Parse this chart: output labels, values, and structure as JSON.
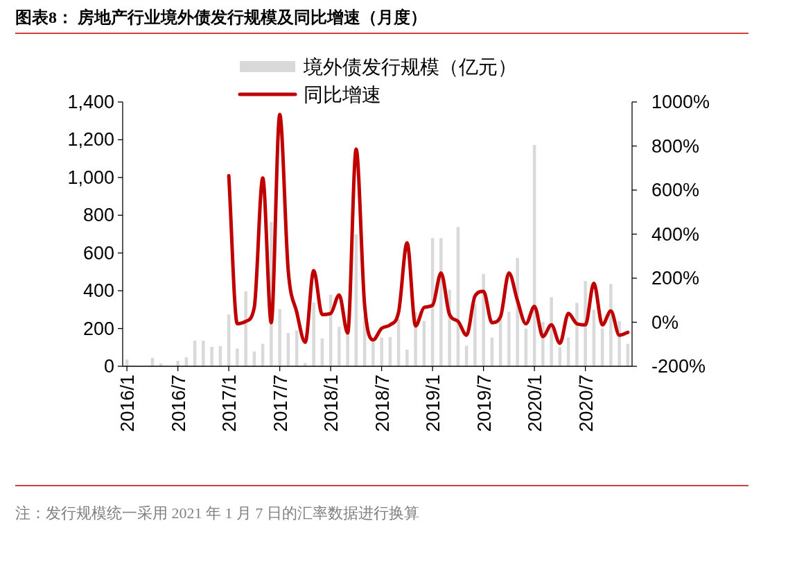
{
  "chart_data": {
    "type": "bar",
    "title": "图表8：  房地产行业境外债发行规模及同比增速（月度）",
    "categories": [
      "2016/1",
      null,
      null,
      null,
      null,
      null,
      "2016/7",
      null,
      null,
      null,
      null,
      null,
      "2017/1",
      null,
      null,
      null,
      null,
      null,
      "2017/7",
      null,
      null,
      null,
      null,
      null,
      "2018/1",
      null,
      null,
      null,
      null,
      null,
      "2018/7",
      null,
      null,
      null,
      null,
      null,
      "2019/1",
      null,
      null,
      null,
      null,
      null,
      "2019/7",
      null,
      null,
      null,
      null,
      null,
      "2020/1",
      null,
      null,
      null,
      null,
      null,
      "2020/7",
      null,
      null,
      null,
      null,
      null
    ],
    "series": [
      {
        "name": "境外债发行规模（亿元）",
        "color": "#d9d9d9",
        "values": [
          36,
          0,
          0,
          45,
          15,
          0,
          29,
          48,
          136,
          136,
          103,
          107,
          274,
          94,
          397,
          78,
          119,
          764,
          303,
          176,
          189,
          17,
          338,
          148,
          379,
          209,
          176,
          699,
          268,
          130,
          152,
          155,
          250,
          88,
          287,
          240,
          679,
          679,
          405,
          738,
          109,
          330,
          489,
          152,
          250,
          289,
          574,
          200,
          1172,
          235,
          366,
          100,
          152,
          336,
          452,
          300,
          200,
          436,
          240,
          119
        ]
      },
      {
        "name": "同比增速",
        "type": "line",
        "axis": "y2",
        "color": "#c00000",
        "values": [
          null,
          null,
          null,
          null,
          null,
          null,
          null,
          null,
          null,
          null,
          null,
          null,
          665,
          -7,
          4,
          67,
          655,
          -2,
          943,
          235,
          46,
          -91,
          235,
          35,
          40,
          124,
          -49,
          786,
          77,
          -80,
          -28,
          -12,
          46,
          361,
          -17,
          67,
          77,
          224,
          35,
          4,
          -59,
          119,
          140,
          -2,
          25,
          224,
          98,
          -7,
          72,
          -65,
          -12,
          -96,
          40,
          -7,
          -12,
          177,
          -12,
          51,
          -59,
          -46
        ]
      }
    ],
    "ylim": [
      0,
      1400
    ],
    "yticks": [
      0,
      200,
      400,
      600,
      800,
      {
        "value": 1000,
        "label": "1,000"
      },
      {
        "value": 1200,
        "label": "1,200"
      },
      {
        "value": 1400,
        "label": "1,400"
      }
    ],
    "y2lim": [
      -200,
      1000
    ],
    "y2ticks": [
      {
        "value": -200,
        "label": "-200%"
      },
      {
        "value": 0,
        "label": "0%"
      },
      {
        "value": 200,
        "label": "200%"
      },
      {
        "value": 400,
        "label": "400%"
      },
      {
        "value": 600,
        "label": "600%"
      },
      {
        "value": 800,
        "label": "800%"
      },
      {
        "value": 1000,
        "label": "1000%"
      }
    ],
    "legend": "top",
    "annotations": [
      "注：发行规模统一采用 2021 年 1 月 7 日的汇率数据进行换算"
    ]
  }
}
